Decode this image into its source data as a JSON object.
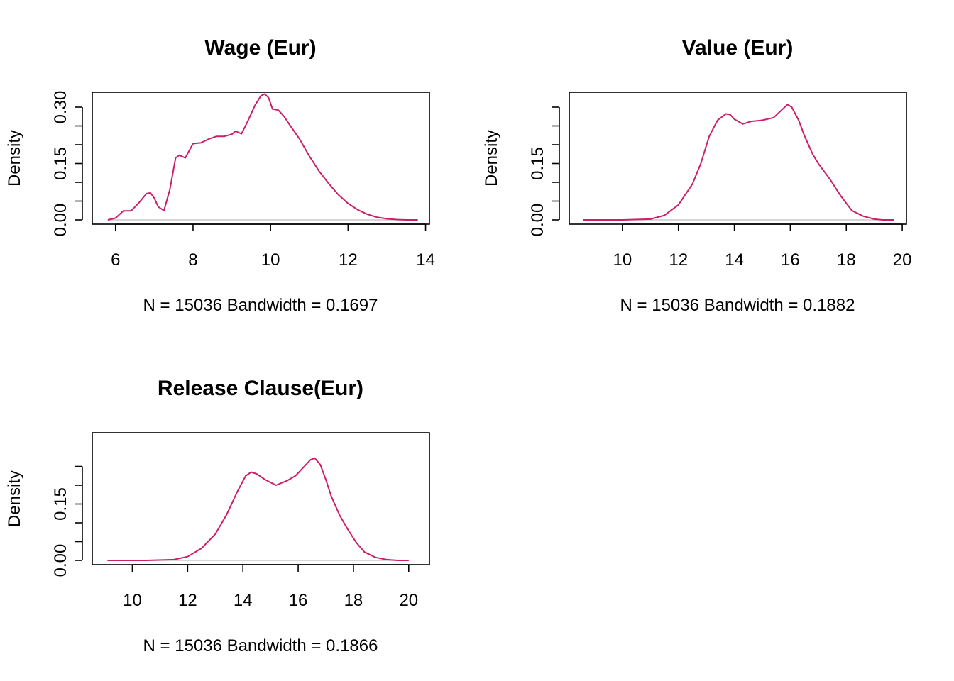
{
  "chart_data": [
    {
      "type": "line",
      "title": "Wage (Eur)",
      "xlabel": "N = 15036   Bandwidth = 0.1697",
      "ylabel": "Density",
      "xlim": [
        5.4,
        14.1
      ],
      "ylim": [
        0,
        0.34
      ],
      "x_ticks": [
        "6",
        "8",
        "10",
        "12",
        "14"
      ],
      "y_ticks_labeled": [
        "0.00",
        "0.15",
        "0.30"
      ],
      "y_ticks_minor": [
        0.05,
        0.1,
        0.2,
        0.25
      ],
      "color": "#cc1f6a",
      "baseline_color": "#bdbdbd",
      "series": [
        {
          "x": [
            5.8,
            6.0,
            6.2,
            6.4,
            6.6,
            6.8,
            6.9,
            7.0,
            7.1,
            7.25,
            7.4,
            7.55,
            7.65,
            7.8,
            8.0,
            8.2,
            8.4,
            8.6,
            8.8,
            9.0,
            9.1,
            9.25,
            9.4,
            9.6,
            9.75,
            9.85,
            9.95,
            10.05,
            10.2,
            10.35,
            10.5,
            10.75,
            11.0,
            11.25,
            11.5,
            11.75,
            12.0,
            12.25,
            12.5,
            12.75,
            13.0,
            13.25,
            13.5,
            13.8
          ],
          "y": [
            0.0,
            0.005,
            0.024,
            0.024,
            0.045,
            0.07,
            0.072,
            0.058,
            0.035,
            0.025,
            0.08,
            0.165,
            0.172,
            0.165,
            0.203,
            0.205,
            0.215,
            0.222,
            0.222,
            0.228,
            0.236,
            0.229,
            0.26,
            0.305,
            0.33,
            0.335,
            0.325,
            0.295,
            0.292,
            0.275,
            0.252,
            0.215,
            0.17,
            0.13,
            0.097,
            0.067,
            0.044,
            0.027,
            0.015,
            0.007,
            0.003,
            0.001,
            0.0,
            0.0
          ]
        }
      ]
    },
    {
      "type": "line",
      "title": "Value (Eur)",
      "xlabel": "N = 15036   Bandwidth = 0.1882",
      "ylabel": "Density",
      "xlim": [
        8.1,
        20.15
      ],
      "ylim": [
        0,
        0.34
      ],
      "x_ticks": [
        "10",
        "12",
        "14",
        "16",
        "18",
        "20"
      ],
      "y_ticks_labeled": [
        "0.00",
        "0.15"
      ],
      "y_ticks_minor": [
        0.05,
        0.1,
        0.2,
        0.25,
        0.3
      ],
      "color": "#cc1f6a",
      "baseline_color": "#bdbdbd",
      "series": [
        {
          "x": [
            8.6,
            10.0,
            11.0,
            11.5,
            12.0,
            12.5,
            12.8,
            13.1,
            13.4,
            13.7,
            13.85,
            14.0,
            14.3,
            14.6,
            15.0,
            15.4,
            15.7,
            15.9,
            16.05,
            16.3,
            16.5,
            16.8,
            17.0,
            17.4,
            17.8,
            18.2,
            18.6,
            19.0,
            19.3,
            19.7
          ],
          "y": [
            0.0,
            0.0,
            0.002,
            0.012,
            0.04,
            0.095,
            0.15,
            0.222,
            0.265,
            0.282,
            0.28,
            0.268,
            0.255,
            0.262,
            0.265,
            0.272,
            0.293,
            0.307,
            0.3,
            0.265,
            0.225,
            0.175,
            0.15,
            0.11,
            0.064,
            0.025,
            0.01,
            0.002,
            0.0,
            0.0
          ]
        }
      ]
    },
    {
      "type": "line",
      "title": "Release Clause(Eur)",
      "xlabel": "N = 15036   Bandwidth = 0.1866",
      "ylabel": "Density",
      "xlim": [
        8.55,
        20.75
      ],
      "ylim": [
        0,
        0.34
      ],
      "x_ticks": [
        "10",
        "12",
        "14",
        "16",
        "18",
        "20"
      ],
      "y_ticks_labeled": [
        "0.00",
        "0.15"
      ],
      "y_ticks_minor": [
        0.05,
        0.1,
        0.2,
        0.25
      ],
      "color": "#cc1f6a",
      "baseline_color": "#bdbdbd",
      "series": [
        {
          "x": [
            9.1,
            10.5,
            11.5,
            12.0,
            12.5,
            13.0,
            13.4,
            13.8,
            14.1,
            14.3,
            14.5,
            14.8,
            15.2,
            15.6,
            15.9,
            16.2,
            16.45,
            16.6,
            16.8,
            17.0,
            17.2,
            17.5,
            17.8,
            18.1,
            18.4,
            18.8,
            19.2,
            19.6,
            20.0
          ],
          "y": [
            0.0,
            0.0,
            0.002,
            0.01,
            0.032,
            0.07,
            0.12,
            0.183,
            0.225,
            0.235,
            0.23,
            0.215,
            0.2,
            0.212,
            0.225,
            0.248,
            0.268,
            0.272,
            0.255,
            0.215,
            0.17,
            0.12,
            0.082,
            0.048,
            0.022,
            0.008,
            0.002,
            0.0,
            0.0
          ]
        }
      ]
    }
  ]
}
